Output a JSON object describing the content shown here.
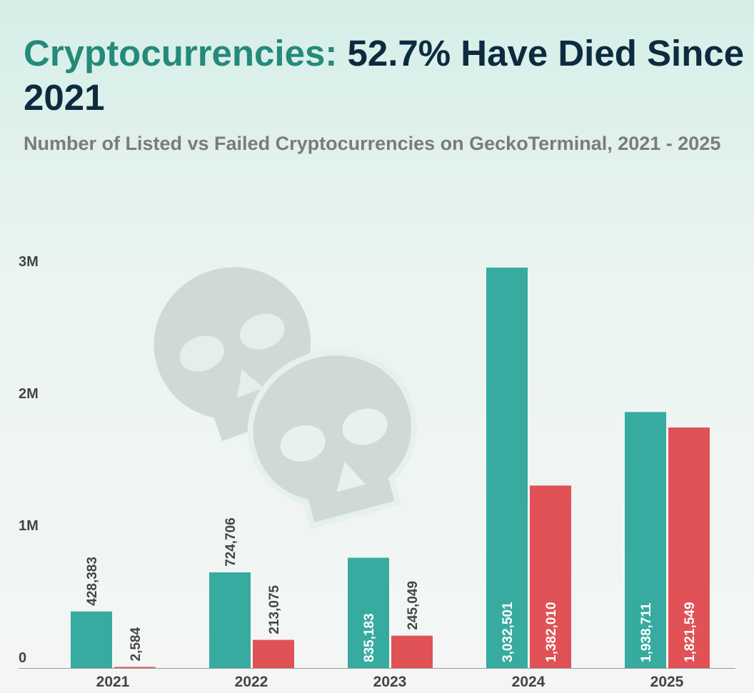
{
  "colors": {
    "listed": "#37aba0",
    "failed": "#e05256",
    "text": "#444444",
    "skull": "#cfd9d6"
  },
  "chart_data": {
    "type": "bar",
    "title_accent": "Cryptocurrencies:",
    "title_main": "52.7% Have Died Since 2021",
    "subtitle": "Number of Listed vs Failed Cryptocurrencies on GeckoTerminal, 2021 - 2025",
    "categories": [
      "2021",
      "2022",
      "2023",
      "2024",
      "2025"
    ],
    "series": [
      {
        "name": "Listed",
        "values": [
          428383,
          724706,
          835183,
          3032501,
          1938711
        ],
        "labels": [
          "428,383",
          "724,706",
          "835,183",
          "3,032,501",
          "1,938,711"
        ]
      },
      {
        "name": "Failed",
        "values": [
          2584,
          213075,
          245049,
          1382010,
          1821549
        ],
        "labels": [
          "2,584",
          "213,075",
          "245,049",
          "1,382,010",
          "1,821,549"
        ]
      }
    ],
    "yticks": [
      0,
      1000000,
      2000000,
      3000000
    ],
    "ytick_labels": [
      "0",
      "1M",
      "2M",
      "3M"
    ],
    "ylim": [
      0,
      3100000
    ],
    "grid": false
  }
}
